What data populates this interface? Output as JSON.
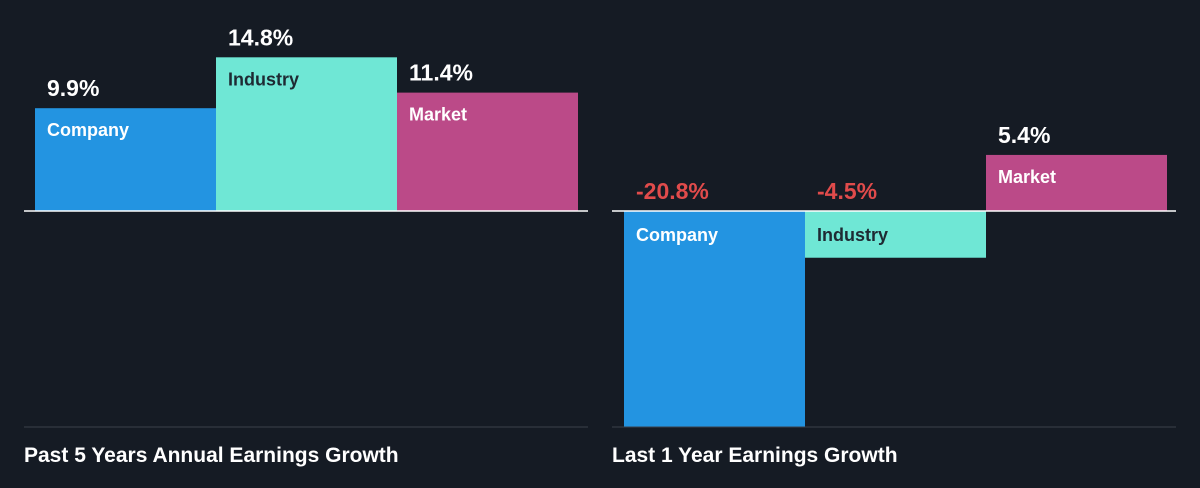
{
  "chart_data": [
    {
      "type": "bar",
      "title": "Past 5 Years Annual Earnings Growth",
      "categories": [
        "Company",
        "Industry",
        "Market"
      ],
      "values": [
        9.9,
        14.8,
        11.4
      ],
      "value_labels": [
        "9.9%",
        "14.8%",
        "11.4%"
      ],
      "unit": "%",
      "ylim": [
        -20.8,
        14.8
      ],
      "grid": false
    },
    {
      "type": "bar",
      "title": "Last 1 Year Earnings Growth",
      "categories": [
        "Company",
        "Industry",
        "Market"
      ],
      "values": [
        -20.8,
        -4.5,
        5.4
      ],
      "value_labels": [
        "-20.8%",
        "-4.5%",
        "5.4%"
      ],
      "unit": "%",
      "ylim": [
        -20.8,
        14.8
      ],
      "grid": false
    }
  ],
  "colors": {
    "background": "#151b24",
    "company": "#2394e1",
    "industry": "#6fe7d5",
    "market": "#bb4a88",
    "positive_label": "#ffffff",
    "negative_label": "#e04b4b",
    "axis_line": "#ffffff",
    "baseline": "#3a414a"
  }
}
